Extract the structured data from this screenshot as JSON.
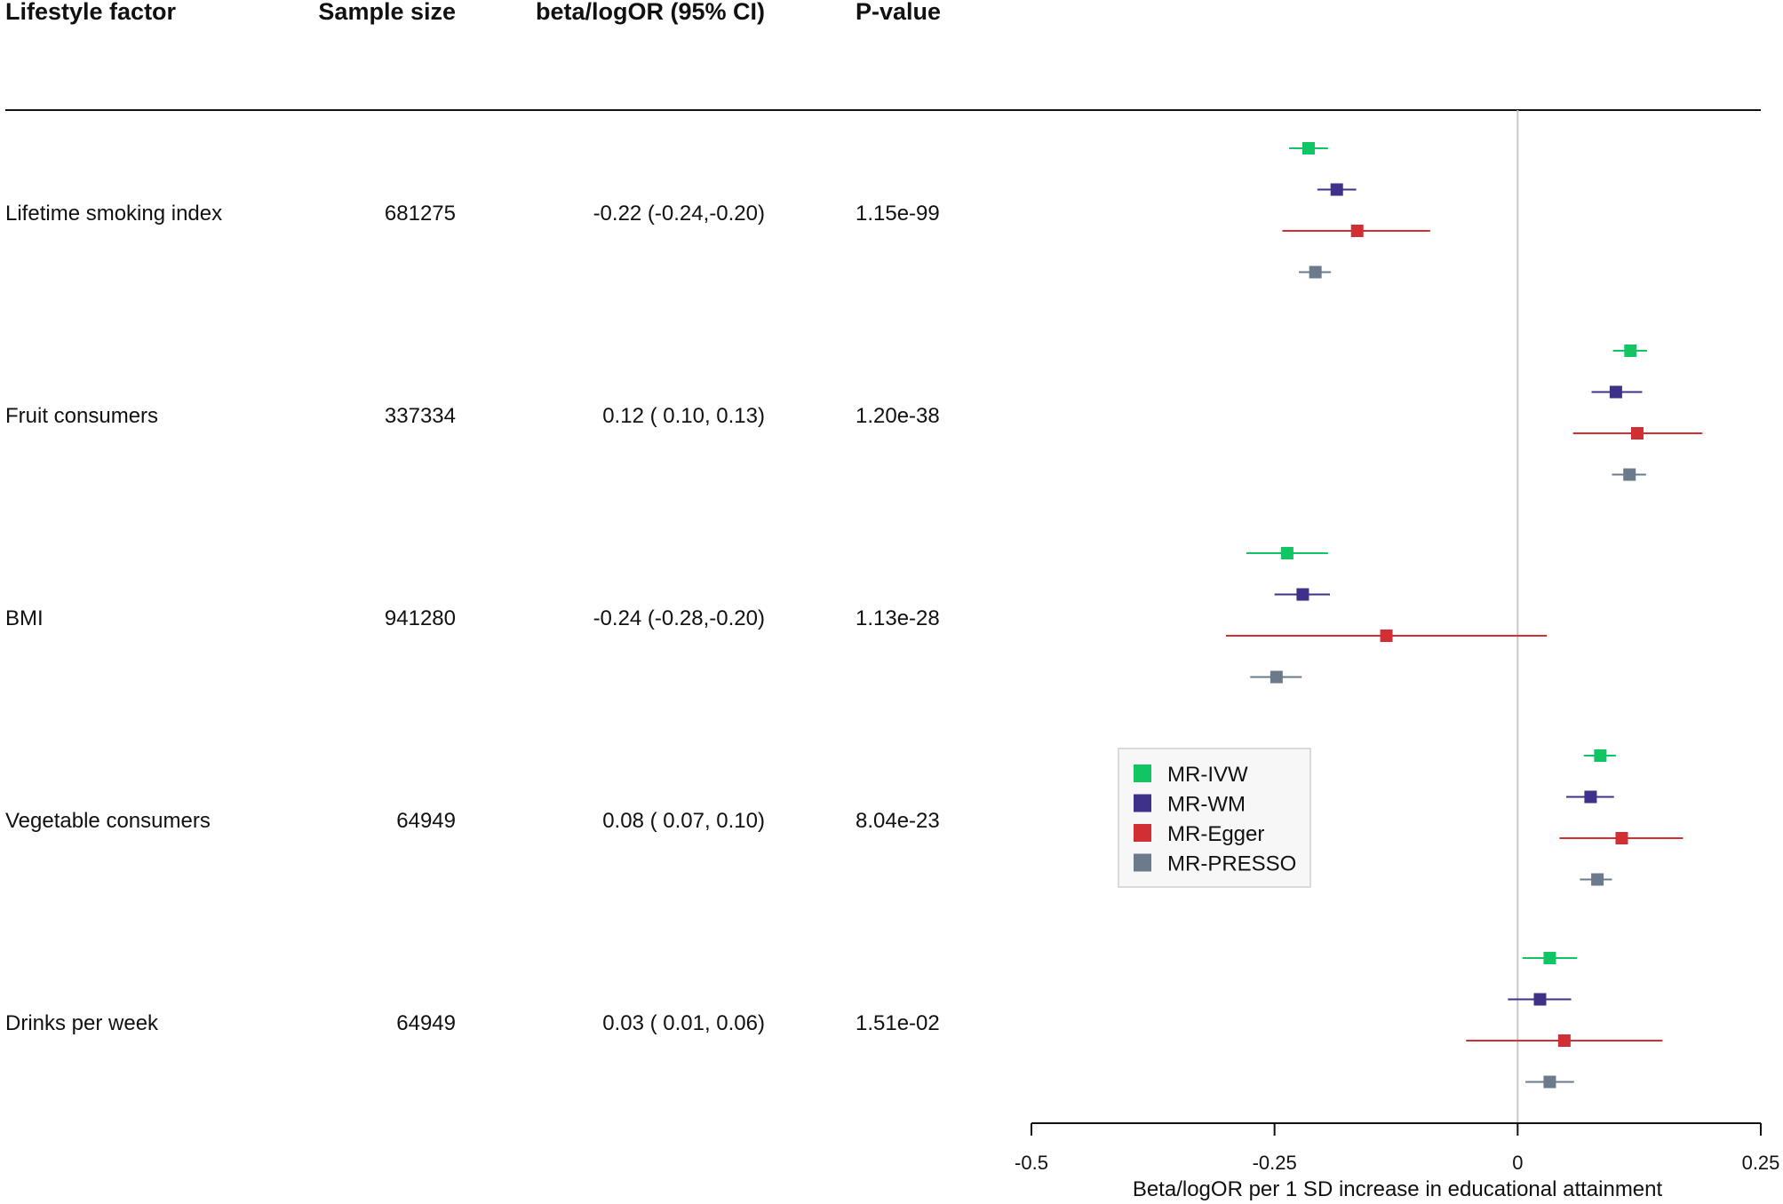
{
  "chart_data": {
    "type": "forest",
    "columns": {
      "factor": "Lifestyle factor",
      "sample_size": "Sample size",
      "estimate": "beta/logOR (95% CI)",
      "pvalue": "P-value"
    },
    "rows": [
      {
        "factor": "Lifetime smoking index",
        "sample_size": "681275",
        "estimate_text": "-0.22 (-0.24,-0.20)",
        "pvalue": "1.15e-99",
        "methods": [
          {
            "method": "MR-IVW",
            "est": -0.215,
            "lo": -0.235,
            "hi": -0.195
          },
          {
            "method": "MR-WM",
            "est": -0.186,
            "lo": -0.206,
            "hi": -0.166
          },
          {
            "method": "MR-Egger",
            "est": -0.165,
            "lo": -0.242,
            "hi": -0.09
          },
          {
            "method": "MR-PRESSO",
            "est": -0.208,
            "lo": -0.225,
            "hi": -0.192
          }
        ]
      },
      {
        "factor": "Fruit consumers",
        "sample_size": "337334",
        "estimate_text": "0.12 ( 0.10, 0.13)",
        "pvalue": "1.20e-38",
        "methods": [
          {
            "method": "MR-IVW",
            "est": 0.116,
            "lo": 0.098,
            "hi": 0.133
          },
          {
            "method": "MR-WM",
            "est": 0.101,
            "lo": 0.076,
            "hi": 0.128
          },
          {
            "method": "MR-Egger",
            "est": 0.123,
            "lo": 0.057,
            "hi": 0.19
          },
          {
            "method": "MR-PRESSO",
            "est": 0.115,
            "lo": 0.097,
            "hi": 0.132
          }
        ]
      },
      {
        "factor": "BMI",
        "sample_size": "941280",
        "estimate_text": "-0.24 (-0.28,-0.20)",
        "pvalue": "1.13e-28",
        "methods": [
          {
            "method": "MR-IVW",
            "est": -0.237,
            "lo": -0.279,
            "hi": -0.195
          },
          {
            "method": "MR-WM",
            "est": -0.221,
            "lo": -0.25,
            "hi": -0.193
          },
          {
            "method": "MR-Egger",
            "est": -0.135,
            "lo": -0.3,
            "hi": 0.03
          },
          {
            "method": "MR-PRESSO",
            "est": -0.248,
            "lo": -0.275,
            "hi": -0.222
          }
        ]
      },
      {
        "factor": "Vegetable consumers",
        "sample_size": "64949",
        "estimate_text": "0.08 ( 0.07, 0.10)",
        "pvalue": "8.04e-23",
        "methods": [
          {
            "method": "MR-IVW",
            "est": 0.085,
            "lo": 0.068,
            "hi": 0.101
          },
          {
            "method": "MR-WM",
            "est": 0.075,
            "lo": 0.05,
            "hi": 0.099
          },
          {
            "method": "MR-Egger",
            "est": 0.107,
            "lo": 0.043,
            "hi": 0.17
          },
          {
            "method": "MR-PRESSO",
            "est": 0.082,
            "lo": 0.064,
            "hi": 0.097
          }
        ]
      },
      {
        "factor": "Drinks per week",
        "sample_size": "64949",
        "estimate_text": "0.03 ( 0.01, 0.06)",
        "pvalue": "1.51e-02",
        "methods": [
          {
            "method": "MR-IVW",
            "est": 0.033,
            "lo": 0.005,
            "hi": 0.061
          },
          {
            "method": "MR-WM",
            "est": 0.023,
            "lo": -0.01,
            "hi": 0.055
          },
          {
            "method": "MR-Egger",
            "est": 0.048,
            "lo": -0.053,
            "hi": 0.149
          },
          {
            "method": "MR-PRESSO",
            "est": 0.033,
            "lo": 0.008,
            "hi": 0.058
          }
        ]
      }
    ],
    "legend": [
      {
        "label": "MR-IVW",
        "color": "#11c464"
      },
      {
        "label": "MR-WM",
        "color": "#3d3189"
      },
      {
        "label": "MR-Egger",
        "color": "#d12f34"
      },
      {
        "label": "MR-PRESSO",
        "color": "#6b7b8c"
      }
    ],
    "legend_position": "inside-left",
    "xlim": [
      -0.5,
      0.25
    ],
    "xticks": [
      -0.5,
      -0.25,
      0,
      0.25
    ],
    "xtick_labels": [
      "-0.5",
      "-0.25",
      "0",
      "0.25"
    ],
    "xlabel": "Beta/logOR per 1 SD increase in educational attainment",
    "reference_line": 0
  }
}
